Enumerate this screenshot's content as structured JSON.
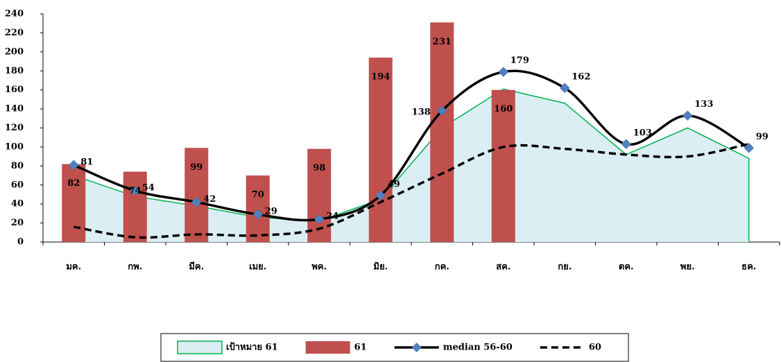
{
  "chart_data": {
    "type": "combo",
    "categories": [
      "มค.",
      "กพ.",
      "มีค.",
      "เมย.",
      "พค.",
      "มิย.",
      "กค.",
      "สค.",
      "กย.",
      "ตค.",
      "พย.",
      "ธค."
    ],
    "ylim": [
      0,
      240
    ],
    "yticks": [
      0,
      20,
      40,
      60,
      80,
      100,
      120,
      140,
      160,
      180,
      200,
      220,
      240
    ],
    "series": [
      {
        "name": "เป้าหมาย 61",
        "type": "area",
        "color": "#00b050",
        "fill": "#daeef3",
        "values": [
          70,
          48,
          38,
          26,
          22,
          45,
          120,
          161,
          146,
          92,
          120,
          88
        ]
      },
      {
        "name": "61",
        "type": "bar",
        "color": "#c0504d",
        "values": [
          82,
          74,
          99,
          70,
          98,
          194,
          231,
          160,
          null,
          null,
          null,
          null
        ]
      },
      {
        "name": "median 56-60",
        "type": "line",
        "color": "#000000",
        "marker_color": "#4f81bd",
        "values": [
          81,
          54,
          42,
          29,
          24,
          49,
          138,
          179,
          162,
          103,
          133,
          99
        ]
      },
      {
        "name": "60",
        "type": "dashed-line",
        "color": "#000000",
        "values": [
          16,
          5,
          8,
          7,
          14,
          42,
          72,
          100,
          98,
          92,
          90,
          103
        ]
      }
    ],
    "legend": "bottom"
  }
}
